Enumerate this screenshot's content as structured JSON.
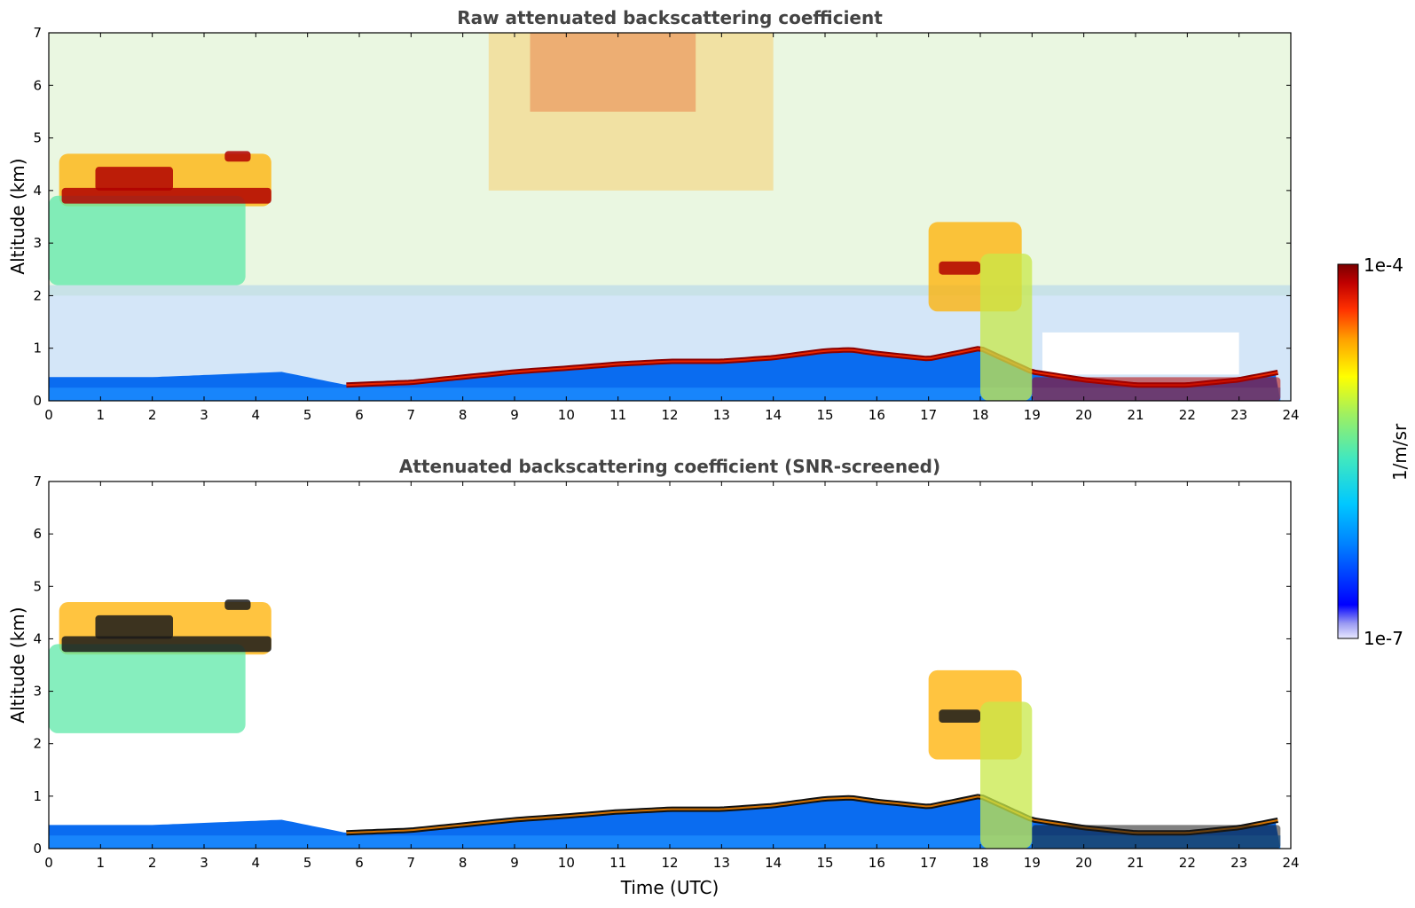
{
  "chart_data": [
    {
      "type": "heatmap",
      "title": "Raw attenuated backscattering coefficient",
      "xlabel": "",
      "ylabel": "Altitude (km)",
      "xlim": [
        0,
        24
      ],
      "ylim": [
        0,
        7
      ],
      "x_ticks": [
        "0",
        "1",
        "2",
        "3",
        "4",
        "5",
        "6",
        "7",
        "8",
        "9",
        "10",
        "11",
        "12",
        "13",
        "14",
        "15",
        "16",
        "17",
        "18",
        "19",
        "20",
        "21",
        "22",
        "23",
        "24"
      ],
      "y_ticks": [
        "0",
        "1",
        "2",
        "3",
        "4",
        "5",
        "6",
        "7"
      ],
      "boundary_layer_top_km": [
        {
          "t": 0,
          "h": 0.45
        },
        {
          "t": 2,
          "h": 0.45
        },
        {
          "t": 4.5,
          "h": 0.55
        },
        {
          "t": 5.75,
          "h": 0.3
        },
        {
          "t": 7,
          "h": 0.35
        },
        {
          "t": 8,
          "h": 0.45
        },
        {
          "t": 9,
          "h": 0.55
        },
        {
          "t": 10,
          "h": 0.62
        },
        {
          "t": 11,
          "h": 0.7
        },
        {
          "t": 12,
          "h": 0.75
        },
        {
          "t": 13,
          "h": 0.75
        },
        {
          "t": 14,
          "h": 0.82
        },
        {
          "t": 15,
          "h": 0.95
        },
        {
          "t": 15.5,
          "h": 0.97
        },
        {
          "t": 16,
          "h": 0.9
        },
        {
          "t": 17,
          "h": 0.8
        },
        {
          "t": 18,
          "h": 1.0
        },
        {
          "t": 19,
          "h": 0.55
        },
        {
          "t": 20,
          "h": 0.4
        },
        {
          "t": 21,
          "h": 0.3
        },
        {
          "t": 22,
          "h": 0.3
        },
        {
          "t": 23,
          "h": 0.4
        },
        {
          "t": 23.8,
          "h": 0.55
        }
      ],
      "features": [
        {
          "kind": "cloud_layer",
          "t_start": 0.2,
          "t_end": 4.3,
          "base_km": 3.7,
          "top_km": 4.7
        },
        {
          "kind": "virga",
          "t_start": 0,
          "t_end": 3.8,
          "base_km": 2.2,
          "top_km": 3.9
        },
        {
          "kind": "cloud_layer",
          "t_start": 17.0,
          "t_end": 18.8,
          "base_km": 1.7,
          "top_km": 3.4
        },
        {
          "kind": "precipitation",
          "t_start": 18.0,
          "t_end": 19.0,
          "base_km": 0,
          "top_km": 2.8
        }
      ]
    },
    {
      "type": "heatmap",
      "title": "Attenuated backscattering coefficient (SNR-screened)",
      "xlabel": "Time (UTC)",
      "ylabel": "Altitude (km)",
      "xlim": [
        0,
        24
      ],
      "ylim": [
        0,
        7
      ],
      "x_ticks": [
        "0",
        "1",
        "2",
        "3",
        "4",
        "5",
        "6",
        "7",
        "8",
        "9",
        "10",
        "11",
        "12",
        "13",
        "14",
        "15",
        "16",
        "17",
        "18",
        "19",
        "20",
        "21",
        "22",
        "23",
        "24"
      ],
      "y_ticks": [
        "0",
        "1",
        "2",
        "3",
        "4",
        "5",
        "6",
        "7"
      ]
    }
  ],
  "colorbar": {
    "label": "1/m/sr",
    "max_label": "1e-4",
    "min_label": "1e-7",
    "scale": "log",
    "range": [
      1e-07,
      0.0001
    ],
    "colormap": [
      "#e8e8ff",
      "#9a9af2",
      "#0000ff",
      "#0080ff",
      "#00c8ff",
      "#40e8c0",
      "#a0f060",
      "#ffff00",
      "#ffa000",
      "#ff3000",
      "#c00000",
      "#7a0000"
    ]
  }
}
